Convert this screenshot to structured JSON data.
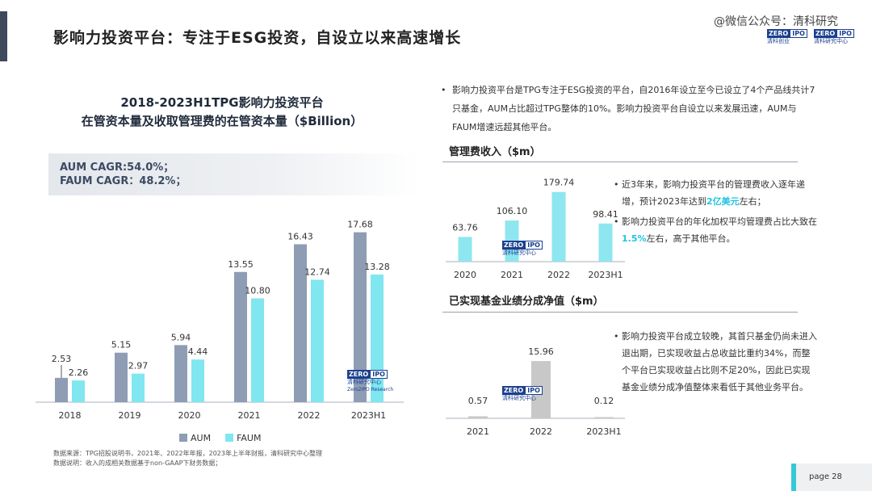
{
  "header": {
    "title": "影响力投资平台：专注于ESG投资，自设立以来高速增长",
    "watermark": "@微信公众号：清科研究",
    "logo_text_1": "ZERO",
    "logo_text_2": "IPO",
    "logo_text_3": "清科创业",
    "logo_text_4": "清科研究中心"
  },
  "left_chart": {
    "title_line1": "2018-2023H1TPG影响力投资平台",
    "title_line2": "在管资本量及收取管理费的在管资本量（$Billion）",
    "cagr_aum": "AUM CAGR:54.0%；",
    "cagr_faum": "FAUM CAGR：48.2%；",
    "legend_aum": "AUM",
    "legend_faum": "FAUM",
    "watermark_zero": "ZERO",
    "watermark_ipo": "IPO",
    "watermark_cn": "清科研究中心",
    "watermark_en": "Zero2IPO Research"
  },
  "notes": {
    "source": "数据来源：TPG招股说明书，2021年、2022年年报，2023年上半年财报，清科研究中心整理",
    "explain": "数据说明：收入的成相关数据基于non-GAAP下财务数据；"
  },
  "right": {
    "bullet_top": "影响力投资平台是TPG专注于ESG投资的平台，自2016年设立至今已设立了4个产品线共计7只基金，AUM占比超过TPG整体的10%。影响力投资平台自设立以来发展迅速，AUM与FAUM增速远超其他平台。",
    "fee_title": "管理费收入（$m）",
    "fee_note1_a": "近3年来，影响力投资平台的管理费收入逐年递增，预计2023年达到",
    "fee_note1_hl": "2亿美元",
    "fee_note1_b": "左右；",
    "fee_note2_a": "影响力投资平台的年化加权平均管理费占比大致在",
    "fee_note2_hl": "1.5%",
    "fee_note2_b": "左右，高于其他平台。",
    "carry_title": "已实现基金业绩分成净值（$m）",
    "carry_note": "影响力投资平台成立较晚，其首只基金仍尚未进入退出期，已实现收益占总收益比重约34%，而整个平台已实现收益占比则不足20%，因此已实现基金业绩分成净值整体来看低于其他业务平台。",
    "bullet_char": "•"
  },
  "footer": {
    "page": "page  28"
  },
  "colors": {
    "aum": "#8e9db4",
    "faum": "#80e6f0",
    "fee": "#8ee6f0",
    "carry": "#c8c8c8",
    "highlight": "#22c4e0"
  },
  "chart_data": [
    {
      "type": "bar",
      "categories": [
        "2018",
        "2019",
        "2020",
        "2021",
        "2022",
        "2023H1"
      ],
      "series": [
        {
          "name": "AUM",
          "values": [
            2.53,
            5.15,
            5.94,
            13.55,
            16.43,
            17.68
          ]
        },
        {
          "name": "FAUM",
          "values": [
            2.26,
            2.97,
            4.44,
            10.8,
            12.74,
            13.28
          ]
        }
      ],
      "title": "2018-2023H1TPG影响力投资平台 在管资本量及收取管理费的在管资本量（$Billion）",
      "ylim": [
        0,
        20
      ],
      "grid": false,
      "legend": "bottom"
    },
    {
      "type": "bar",
      "categories": [
        "2020",
        "2021",
        "2022",
        "2023H1"
      ],
      "values": [
        63.76,
        106.1,
        179.74,
        98.41
      ],
      "title": "管理费收入（$m）",
      "ylim": [
        0,
        200
      ],
      "grid": false
    },
    {
      "type": "bar",
      "categories": [
        "2021",
        "2022",
        "2023H1"
      ],
      "values": [
        0.57,
        15.96,
        0.12
      ],
      "title": "已实现基金业绩分成净值（$m）",
      "ylim": [
        0,
        18
      ],
      "grid": false
    }
  ]
}
